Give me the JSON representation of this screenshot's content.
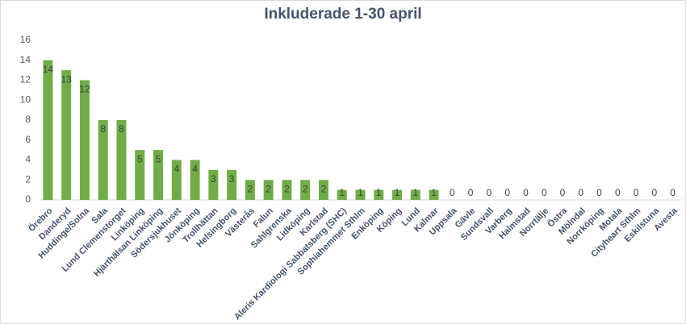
{
  "chart_data": {
    "type": "bar",
    "title": "Inkluderade 1-30 april",
    "categories": [
      "Örebro",
      "Danderyd",
      "Huddinge/Solna",
      "Sala",
      "Lund Clemenstorget",
      "Linköping",
      "Hjärthälsan Linköping",
      "Södersjukhuset",
      "Jönköping",
      "Trollhättan",
      "Helsingborg",
      "Västerås",
      "Falun",
      "Sahlgrenska",
      "Lidköping",
      "Karlstad",
      "Aleris Kardiologi Sabbatsberg (SHC)",
      "Sophiahemmet Sthlm",
      "Enköping",
      "Köping",
      "Lund",
      "Kalmar",
      "Uppsala",
      "Gävle",
      "Sundsvall",
      "Varberg",
      "Halmstad",
      "Norrtälje",
      "Östra",
      "Mölndal",
      "Norrköping",
      "Motala",
      "Cityheart Sthlm",
      "Eskilstuna",
      "Avesta"
    ],
    "values": [
      14,
      13,
      12,
      8,
      8,
      5,
      5,
      4,
      4,
      3,
      3,
      2,
      2,
      2,
      2,
      2,
      1,
      1,
      1,
      1,
      1,
      1,
      0,
      0,
      0,
      0,
      0,
      0,
      0,
      0,
      0,
      0,
      0,
      0,
      0
    ],
    "color": "#70ad47",
    "ylim": [
      0,
      16
    ],
    "yticks": [
      0,
      2,
      4,
      6,
      8,
      10,
      12,
      14,
      16
    ],
    "grid": false
  }
}
